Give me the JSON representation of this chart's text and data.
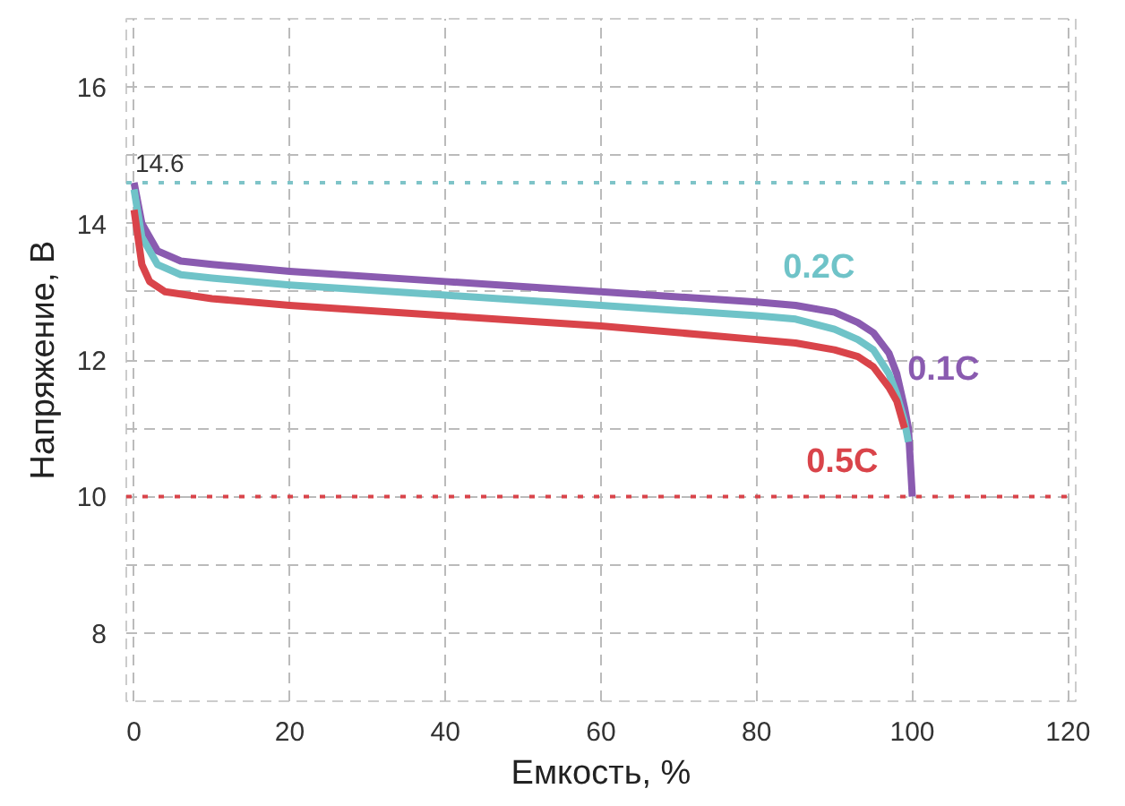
{
  "chart_data": {
    "type": "line",
    "xlabel": "Емкость, %",
    "ylabel": "Напряжение, В",
    "xlim": [
      -1,
      121
    ],
    "ylim": [
      7,
      17
    ],
    "xticks": [
      0,
      20,
      40,
      60,
      80,
      100,
      120
    ],
    "yticks": [
      {
        "value": 7,
        "label": null
      },
      8,
      {
        "value": 9,
        "label": null
      },
      10,
      {
        "value": 11,
        "label": null
      },
      12,
      {
        "value": 13,
        "label": null
      },
      14,
      {
        "value": 15,
        "label": null
      },
      16,
      {
        "value": 17,
        "label": null
      }
    ],
    "grid": true,
    "marker": "none",
    "line_style": "solid",
    "ref_lines": [
      {
        "axis": "y",
        "value": 14.6,
        "label": "14.6",
        "color": "#7fc4c8",
        "line_style": "dotted"
      },
      {
        "axis": "y",
        "value": 10,
        "label": null,
        "color": "#d9444a",
        "line_style": "dotted"
      }
    ],
    "series": [
      {
        "name": "0.1C",
        "color": "#8a5bb0",
        "x": [
          0,
          1,
          3,
          6,
          10,
          20,
          40,
          60,
          80,
          85,
          90,
          93,
          95,
          97,
          98,
          99,
          99.5,
          100
        ],
        "values": [
          14.6,
          14.0,
          13.6,
          13.45,
          13.4,
          13.3,
          13.15,
          13.0,
          12.85,
          12.8,
          12.7,
          12.55,
          12.4,
          12.1,
          11.8,
          11.3,
          11.0,
          10.0
        ]
      },
      {
        "name": "0.2C",
        "color": "#6fc3c8",
        "x": [
          0,
          1,
          3,
          6,
          10,
          20,
          40,
          60,
          80,
          85,
          90,
          93,
          95,
          97,
          98,
          99,
          99.5
        ],
        "values": [
          14.5,
          13.8,
          13.4,
          13.25,
          13.2,
          13.1,
          12.95,
          12.8,
          12.65,
          12.6,
          12.45,
          12.3,
          12.15,
          11.8,
          11.5,
          11.1,
          10.8
        ]
      },
      {
        "name": "0.5C",
        "color": "#d9444a",
        "x": [
          0,
          1,
          2,
          4,
          10,
          20,
          40,
          60,
          80,
          85,
          90,
          93,
          95,
          97,
          98,
          99
        ],
        "values": [
          14.2,
          13.4,
          13.15,
          13.0,
          12.9,
          12.8,
          12.65,
          12.5,
          12.3,
          12.25,
          12.15,
          12.05,
          11.9,
          11.6,
          11.4,
          11.0
        ]
      }
    ]
  }
}
